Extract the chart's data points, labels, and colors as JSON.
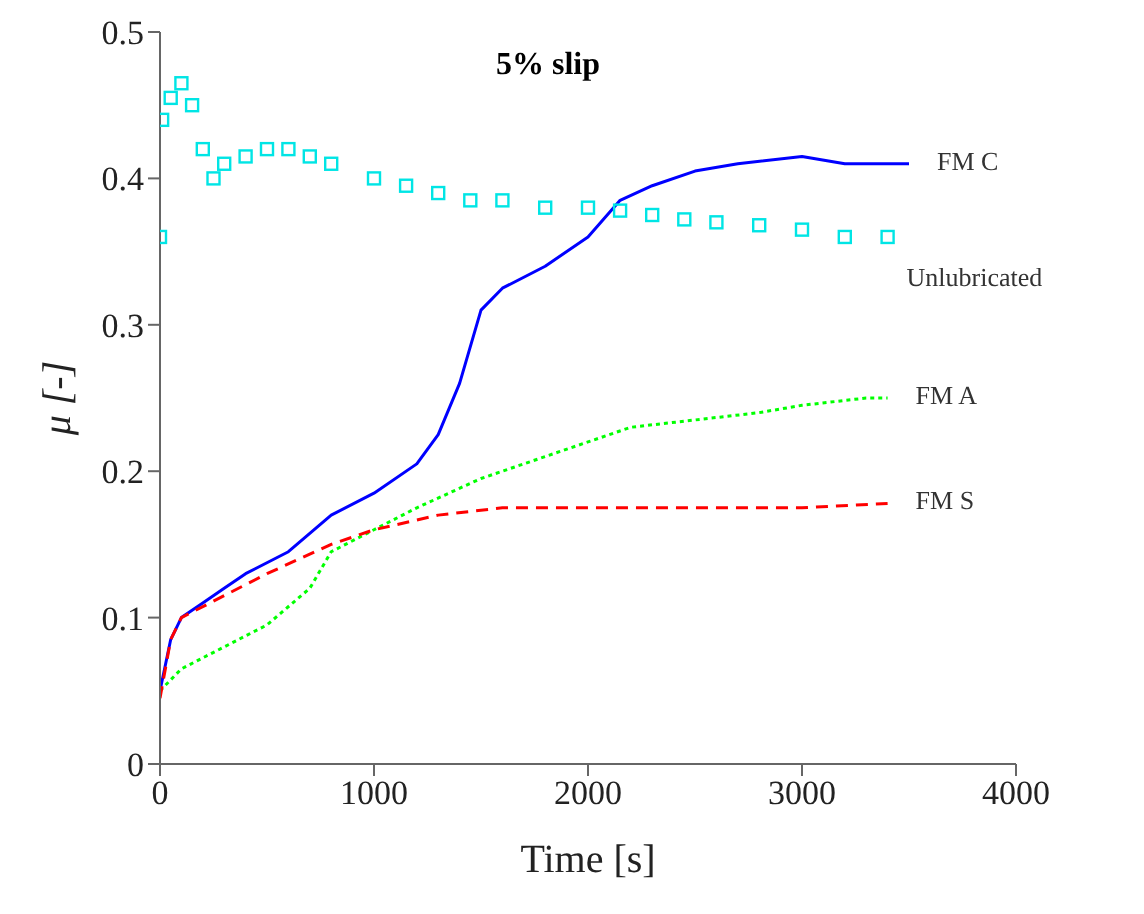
{
  "chart_data": {
    "type": "line",
    "title": "5% slip",
    "xlabel": "Time [s]",
    "ylabel": "μ [-]",
    "xlim": [
      0,
      4000
    ],
    "xticks": [
      0,
      1000,
      2000,
      3000,
      4000
    ],
    "ylim": [
      0,
      0.5
    ],
    "yticks": [
      0,
      0.1,
      0.2,
      0.3,
      0.4,
      0.5
    ],
    "grid": false,
    "legend": false,
    "series": [
      {
        "name": "FM C",
        "color": "#0000ff",
        "line_style": "solid",
        "marker": "none",
        "x": [
          0,
          50,
          100,
          200,
          300,
          400,
          600,
          800,
          1000,
          1200,
          1300,
          1400,
          1500,
          1600,
          1800,
          2000,
          2150,
          2300,
          2500,
          2700,
          3000,
          3200,
          3500
        ],
        "values": [
          0.05,
          0.085,
          0.1,
          0.11,
          0.12,
          0.13,
          0.145,
          0.17,
          0.185,
          0.205,
          0.225,
          0.26,
          0.31,
          0.325,
          0.34,
          0.36,
          0.385,
          0.395,
          0.405,
          0.41,
          0.415,
          0.41,
          0.41
        ]
      },
      {
        "name": "Unlubricated",
        "type": "scatter",
        "color": "#00e5e5",
        "marker": "square",
        "x": [
          0,
          10,
          50,
          100,
          150,
          200,
          250,
          300,
          400,
          500,
          600,
          700,
          800,
          1000,
          1150,
          1300,
          1450,
          1600,
          1800,
          2000,
          2150,
          2300,
          2450,
          2600,
          2800,
          3000,
          3200,
          3400
        ],
        "values": [
          0.36,
          0.44,
          0.455,
          0.465,
          0.45,
          0.42,
          0.4,
          0.41,
          0.415,
          0.42,
          0.42,
          0.415,
          0.41,
          0.4,
          0.395,
          0.39,
          0.385,
          0.385,
          0.38,
          0.38,
          0.378,
          0.375,
          0.372,
          0.37,
          0.368,
          0.365,
          0.36,
          0.36
        ]
      },
      {
        "name": "FM A",
        "color": "#00ff00",
        "line_style": "dotted",
        "marker": "none",
        "x": [
          0,
          100,
          300,
          500,
          700,
          800,
          1000,
          1200,
          1500,
          1800,
          2000,
          2200,
          2500,
          2800,
          3000,
          3300,
          3400
        ],
        "values": [
          0.05,
          0.065,
          0.08,
          0.095,
          0.12,
          0.145,
          0.16,
          0.175,
          0.195,
          0.21,
          0.22,
          0.23,
          0.235,
          0.24,
          0.245,
          0.25,
          0.25
        ]
      },
      {
        "name": "FM S",
        "color": "#ff0000",
        "line_style": "dashed",
        "marker": "none",
        "x": [
          0,
          50,
          100,
          300,
          500,
          800,
          1000,
          1300,
          1600,
          2000,
          2500,
          3000,
          3400
        ],
        "values": [
          0.045,
          0.085,
          0.1,
          0.115,
          0.13,
          0.15,
          0.16,
          0.17,
          0.175,
          0.175,
          0.175,
          0.175,
          0.178
        ]
      }
    ]
  }
}
